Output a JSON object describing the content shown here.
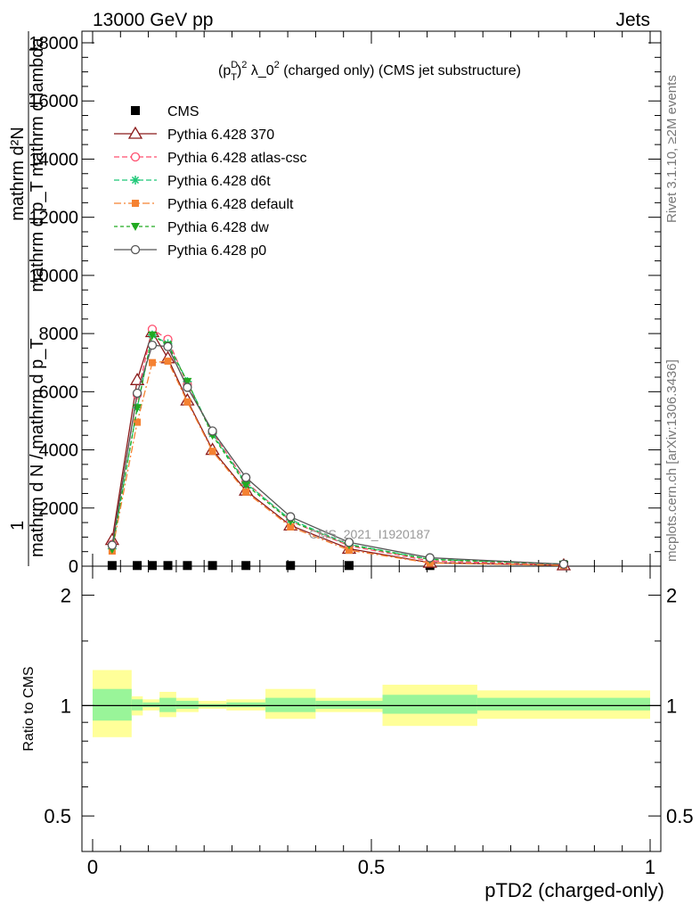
{
  "header": {
    "left": "13000 GeV pp",
    "right": "Jets"
  },
  "side_labels": {
    "rivet": "Rivet 3.1.10, ≥2M events",
    "mcplots": "mcplots.cern.ch [arXiv:1306.3436]"
  },
  "watermark": "CMS_2021_I1920187",
  "colors": {
    "cms": "#000000",
    "p370": "#8b1a1a",
    "atlas": "#ff4d6d",
    "d6t": "#1fc878",
    "default": "#f58232",
    "dw": "#22aa22",
    "p0": "#555555",
    "band_inner": "#99f599",
    "band_outer": "#ffff99"
  },
  "chart_data": [
    {
      "type": "line",
      "panel": "main",
      "title_parts": {
        "p": "(p",
        "sup_D": "D",
        "sub_T": "T",
        "close": ")",
        "sup2": "2",
        "lam": " λ_0",
        "sup2b": "2",
        "tail": " (charged only) (CMS jet substructure)"
      },
      "ylabel_lines": [
        "1",
        "mathrm d N / mathrm d p_T mathrm d p_T mathrm d lambda",
        "mathrm d^2N",
        "mathrm d p_T mathrm d lambda"
      ],
      "ylabel_num": "mathrm d²N",
      "ylabel_den": "mathrm d p_T mathrm d lambda",
      "ylabel_pre_num": "1",
      "ylabel_pre_den": "mathrm d N / mathrm d p_T",
      "ylim": [
        0,
        18000
      ],
      "yticks": [
        0,
        2000,
        4000,
        6000,
        8000,
        10000,
        12000,
        14000,
        16000,
        18000
      ],
      "ytick_labels": [
        "0",
        "2000",
        "4000",
        "6000",
        "8000",
        "10000",
        "12000",
        "14000",
        "16000",
        "18000"
      ],
      "xlim": [
        0,
        1
      ],
      "x": [
        0.035,
        0.08,
        0.107,
        0.135,
        0.17,
        0.215,
        0.275,
        0.355,
        0.46,
        0.605,
        0.845
      ],
      "series": [
        {
          "name": "CMS",
          "key": "cms",
          "marker": "square",
          "values": [
            22,
            22,
            22,
            22,
            22,
            22,
            22,
            22,
            22,
            22,
            22
          ]
        },
        {
          "name": "Pythia 6.428 370",
          "key": "p370",
          "marker": "triangle-open",
          "dash": "",
          "values": [
            900,
            6400,
            8050,
            7150,
            5700,
            4000,
            2600,
            1400,
            600,
            120,
            30
          ]
        },
        {
          "name": "Pythia 6.428 atlas-csc",
          "key": "atlas",
          "marker": "circle-open",
          "dash": "6,3",
          "values": [
            750,
            5900,
            8150,
            7800,
            6250,
            4600,
            2900,
            1550,
            700,
            180,
            50
          ]
        },
        {
          "name": "Pythia 6.428 d6t",
          "key": "d6t",
          "marker": "star",
          "dash": "6,3",
          "values": [
            600,
            5450,
            7950,
            7650,
            6350,
            4550,
            2850,
            1600,
            750,
            240,
            70
          ]
        },
        {
          "name": "Pythia 6.428 default",
          "key": "default",
          "marker": "square-filled",
          "dash": "8,3,2,3",
          "values": [
            520,
            4950,
            7000,
            7050,
            5650,
            3950,
            2550,
            1350,
            550,
            110,
            25
          ]
        },
        {
          "name": "Pythia 6.428 dw",
          "key": "dw",
          "marker": "triangle-down",
          "dash": "4,3",
          "values": [
            580,
            5450,
            7950,
            7600,
            6350,
            4500,
            2800,
            1550,
            730,
            230,
            70
          ]
        },
        {
          "name": "Pythia 6.428 p0",
          "key": "p0",
          "marker": "circle-open",
          "dash": "",
          "values": [
            720,
            5950,
            7600,
            7550,
            6150,
            4650,
            3050,
            1700,
            820,
            290,
            70
          ]
        }
      ]
    },
    {
      "type": "area",
      "panel": "ratio",
      "ylabel": "Ratio to CMS",
      "ylim": [
        0.4,
        2.4
      ],
      "log_y": true,
      "yticks": [
        0.5,
        1,
        2
      ],
      "ytick_labels": [
        "0.5",
        "1",
        "2"
      ],
      "xticks": [
        0,
        0.5,
        1
      ],
      "xtick_labels": [
        "0",
        "0.5",
        "1"
      ],
      "xlabel": "pTD2 (charged-only)",
      "bins": [
        {
          "lo": 0.0,
          "hi": 0.07,
          "inner": [
            0.91,
            1.11
          ],
          "outer": [
            0.82,
            1.25
          ]
        },
        {
          "lo": 0.07,
          "hi": 0.09,
          "inner": [
            0.97,
            1.04
          ],
          "outer": [
            0.94,
            1.06
          ]
        },
        {
          "lo": 0.09,
          "hi": 0.12,
          "inner": [
            0.99,
            1.02
          ],
          "outer": [
            0.97,
            1.04
          ]
        },
        {
          "lo": 0.12,
          "hi": 0.15,
          "inner": [
            0.96,
            1.05
          ],
          "outer": [
            0.93,
            1.09
          ]
        },
        {
          "lo": 0.15,
          "hi": 0.19,
          "inner": [
            0.98,
            1.03
          ],
          "outer": [
            0.96,
            1.05
          ]
        },
        {
          "lo": 0.19,
          "hi": 0.24,
          "inner": [
            0.99,
            1.01
          ],
          "outer": [
            0.98,
            1.03
          ]
        },
        {
          "lo": 0.24,
          "hi": 0.31,
          "inner": [
            0.99,
            1.02
          ],
          "outer": [
            0.97,
            1.04
          ]
        },
        {
          "lo": 0.31,
          "hi": 0.4,
          "inner": [
            0.96,
            1.05
          ],
          "outer": [
            0.92,
            1.11
          ]
        },
        {
          "lo": 0.4,
          "hi": 0.52,
          "inner": [
            0.98,
            1.03
          ],
          "outer": [
            0.96,
            1.05
          ]
        },
        {
          "lo": 0.52,
          "hi": 0.69,
          "inner": [
            0.95,
            1.07
          ],
          "outer": [
            0.88,
            1.14
          ]
        },
        {
          "lo": 0.69,
          "hi": 1.0,
          "inner": [
            0.97,
            1.05
          ],
          "outer": [
            0.92,
            1.1
          ]
        }
      ]
    }
  ]
}
